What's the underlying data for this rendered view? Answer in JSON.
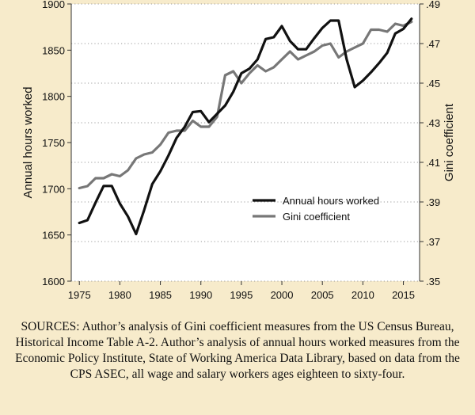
{
  "chart_data": {
    "type": "line",
    "title": "",
    "xlabel": "",
    "ylabel": "Annual hours worked",
    "y2label": "Gini coefficient",
    "xlim": [
      1975,
      2016
    ],
    "ylim": [
      1600,
      1900
    ],
    "y2lim": [
      0.35,
      0.49
    ],
    "x_ticks": [
      "1975",
      "1980",
      "1985",
      "1990",
      "1995",
      "2000",
      "2005",
      "2010",
      "2015"
    ],
    "y_ticks": [
      "1600",
      "1650",
      "1700",
      "1750",
      "1800",
      "1850",
      "1900"
    ],
    "y2_ticks": [
      ".35",
      ".37",
      ".39",
      ".41",
      ".43",
      ".45",
      ".47",
      ".49"
    ],
    "grid": "dotted horizontal at right-axis ticks",
    "legend_position": "center-right",
    "series": [
      {
        "name": "Annual hours worked",
        "axis": "left",
        "color": "#111111",
        "x": [
          1975,
          1976,
          1977,
          1978,
          1979,
          1980,
          1981,
          1982,
          1983,
          1984,
          1985,
          1986,
          1987,
          1988,
          1989,
          1990,
          1991,
          1992,
          1993,
          1994,
          1995,
          1996,
          1997,
          1998,
          1999,
          2000,
          2001,
          2002,
          2003,
          2004,
          2005,
          2006,
          2007,
          2008,
          2009,
          2010,
          2011,
          2012,
          2013,
          2014,
          2015,
          2016
        ],
        "values": [
          1663,
          1666,
          1685,
          1703,
          1703,
          1684,
          1670,
          1651,
          1677,
          1705,
          1719,
          1736,
          1755,
          1767,
          1783,
          1784,
          1772,
          1781,
          1790,
          1805,
          1825,
          1830,
          1840,
          1862,
          1864,
          1876,
          1860,
          1851,
          1851,
          1863,
          1874,
          1882,
          1882,
          1840,
          1810,
          1817,
          1826,
          1836,
          1847,
          1868,
          1873,
          1884
        ]
      },
      {
        "name": "Gini coefficient",
        "axis": "right",
        "color": "#777777",
        "x": [
          1975,
          1976,
          1977,
          1978,
          1979,
          1980,
          1981,
          1982,
          1983,
          1984,
          1985,
          1986,
          1987,
          1988,
          1989,
          1990,
          1991,
          1992,
          1993,
          1994,
          1995,
          1996,
          1997,
          1998,
          1999,
          2000,
          2001,
          2002,
          2003,
          2004,
          2005,
          2006,
          2007,
          2008,
          2009,
          2010,
          2011,
          2012,
          2013,
          2014,
          2015,
          2016
        ],
        "values": [
          0.397,
          0.398,
          0.402,
          0.402,
          0.404,
          0.403,
          0.406,
          0.412,
          0.414,
          0.415,
          0.419,
          0.425,
          0.426,
          0.426,
          0.431,
          0.428,
          0.428,
          0.433,
          0.454,
          0.456,
          0.45,
          0.455,
          0.459,
          0.456,
          0.458,
          0.462,
          0.466,
          0.462,
          0.464,
          0.466,
          0.469,
          0.47,
          0.463,
          0.466,
          0.468,
          0.47,
          0.477,
          0.477,
          0.476,
          0.48,
          0.479,
          0.481
        ]
      }
    ]
  },
  "sources_text": "SOURCES: Author’s analysis of Gini coefficient measures from the US Census Bureau, Historical Income Table A-2. Author’s analysis of annual hours worked measures from the Economic Policy Institute, State of Working America Data Library, based on data from the CPS ASEC, all wage and salary workers ages eighteen to sixty-four."
}
